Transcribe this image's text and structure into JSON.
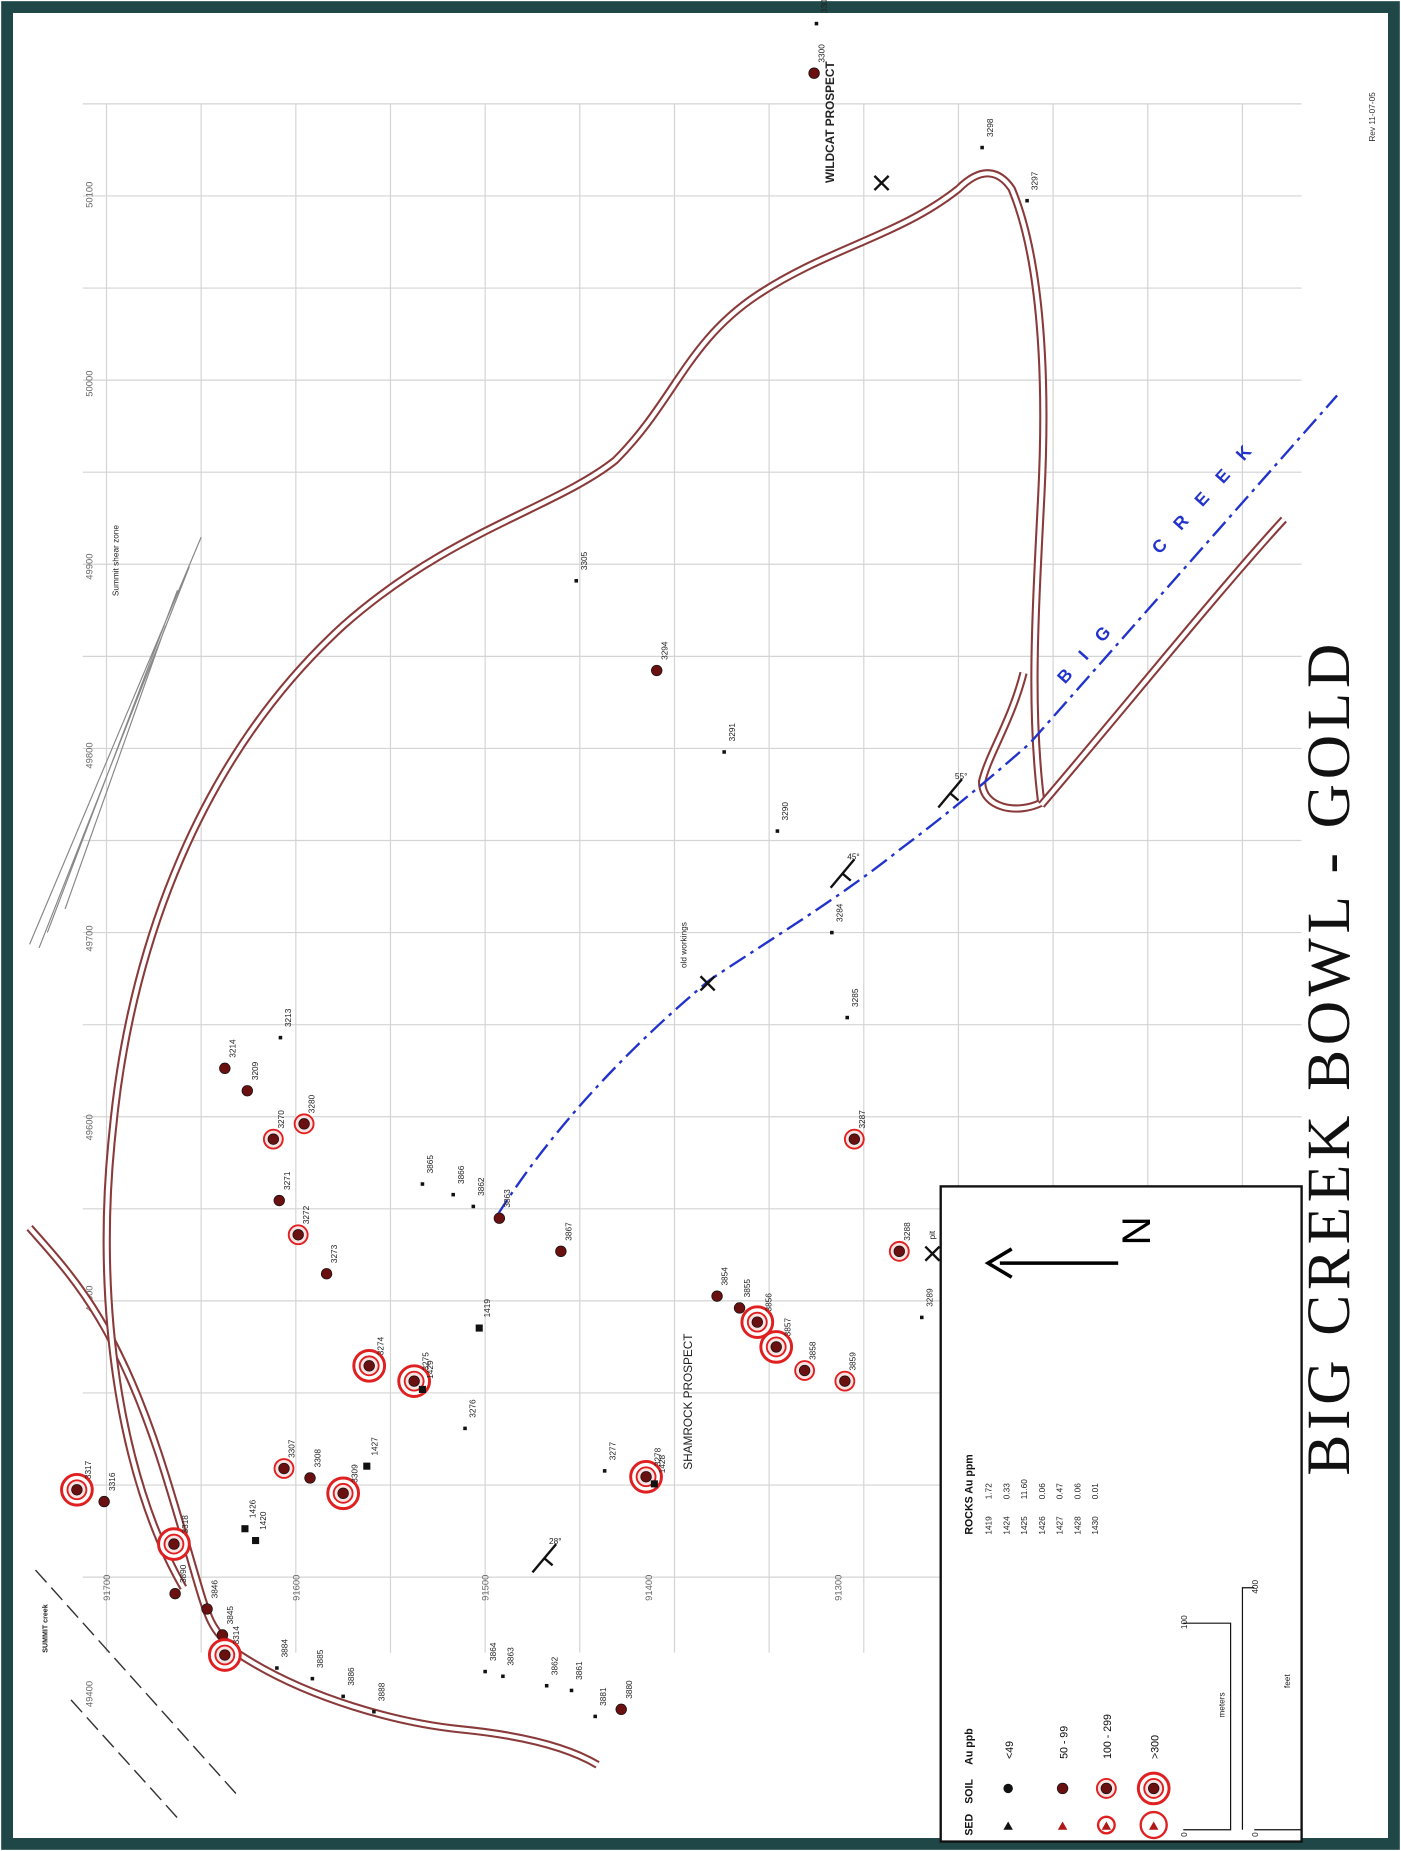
{
  "title": "BIG CREEK BOWL - GOLD",
  "revision": "Rev 11-07-05",
  "grid": {
    "northings": [
      "91700",
      "91600",
      "91500",
      "91400",
      "91300"
    ],
    "eastings": [
      "50100",
      "50000",
      "49900",
      "49800",
      "49700",
      "49600",
      "49500",
      "49400"
    ]
  },
  "places": [
    "WILDCAT PROSPECT",
    "SHAMROCK PROSPECT",
    "old workings",
    "pit",
    "Summit shear zone",
    "SUMMIT creek"
  ],
  "creek": [
    "B I G",
    "C R E E K"
  ],
  "strikes": [
    "28°",
    "45°",
    "55°"
  ],
  "samples": [
    "3317",
    "3316",
    "3318",
    "3890",
    "3846",
    "3845",
    "3314",
    "1426",
    "1420",
    "3307",
    "3308",
    "3309",
    "1427",
    "3274",
    "3275",
    "1429",
    "3276",
    "1419",
    "3884",
    "3885",
    "3886",
    "3888",
    "3864",
    "3863",
    "3862",
    "3861",
    "3881",
    "3880",
    "3277",
    "3278",
    "1428",
    "3214",
    "3209",
    "3213",
    "3270",
    "3280",
    "3271",
    "3272",
    "3273",
    "3865",
    "3866",
    "3862",
    "3863",
    "3867",
    "3854",
    "3855",
    "3856",
    "3857",
    "3858",
    "3859",
    "3288",
    "3289",
    "3287",
    "3285",
    "3284",
    "3290",
    "3291",
    "3294",
    "3305",
    "3300",
    "3302",
    "3298",
    "3297"
  ],
  "legend": {
    "headers": [
      "SED",
      "SOIL",
      "Au ppb"
    ],
    "classes": [
      "<49",
      "50 - 99",
      "100 - 299",
      ">300"
    ],
    "rocks_header": "ROCKS  Au ppm",
    "rocks": [
      [
        "1419",
        "1.72"
      ],
      [
        "1424",
        "0.33"
      ],
      [
        "1425",
        "11.60"
      ],
      [
        "1426",
        "0.06"
      ],
      [
        "1427",
        "0.47"
      ],
      [
        "1428",
        "0.06"
      ],
      [
        "1430",
        "0.01"
      ]
    ],
    "scale": {
      "meters": [
        "0",
        "100",
        "meters"
      ],
      "feet": [
        "0",
        "400",
        "feet"
      ]
    },
    "north": "N"
  }
}
